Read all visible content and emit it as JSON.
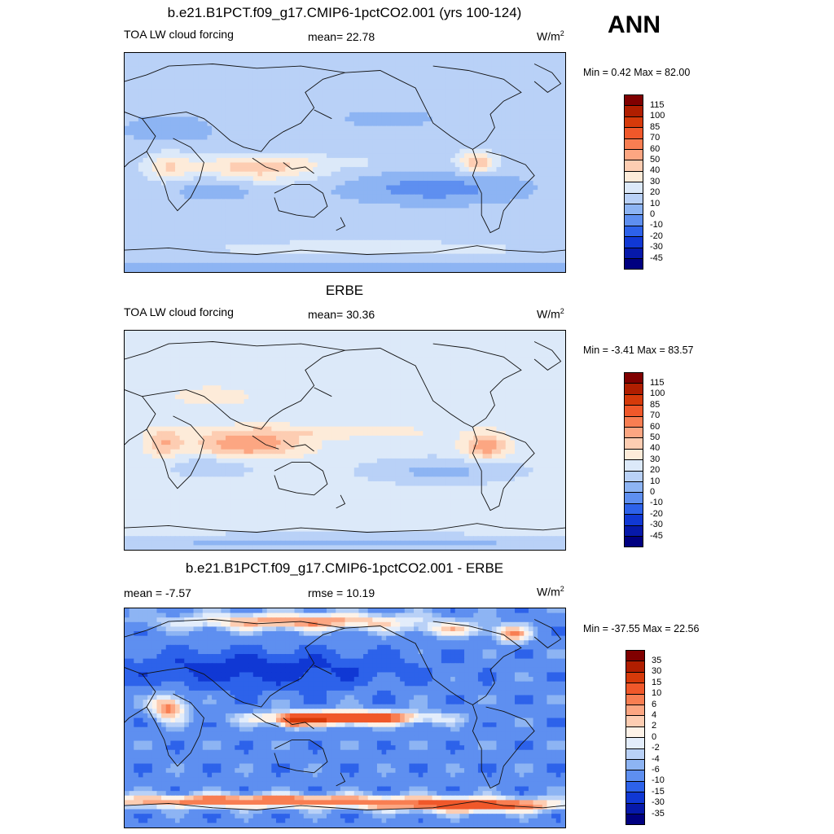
{
  "header": {
    "season": "ANN"
  },
  "panels": [
    {
      "title": "b.e21.B1PCT.f09_g17.CMIP6-1pctCO2.001 (yrs 100-124)",
      "left_label": "TOA LW cloud forcing",
      "center_label": "mean=  22.78",
      "units": "W/m",
      "units_sup": "2",
      "minmax": "Min =   0.42 Max =  82.00",
      "scale": "abs",
      "base_level": 15,
      "pattern": "model"
    },
    {
      "title": "ERBE",
      "left_label": "TOA LW cloud forcing",
      "center_label": "mean=  30.36",
      "units": "W/m",
      "units_sup": "2",
      "minmax": "Min =  -3.41 Max =  83.57",
      "scale": "abs",
      "base_level": 25,
      "pattern": "obs"
    },
    {
      "title": "b.e21.B1PCT.f09_g17.CMIP6-1pctCO2.001 - ERBE",
      "left_label": "mean =  -7.57",
      "center_label": "rmse =  10.19",
      "units": "W/m",
      "units_sup": "2",
      "minmax": "Min = -37.55 Max =  22.56",
      "scale": "diff",
      "base_level": -8,
      "pattern": "diff"
    }
  ],
  "colorbars": {
    "abs": {
      "labels": [
        "115",
        "100",
        "85",
        "70",
        "60",
        "50",
        "40",
        "30",
        "20",
        "10",
        "0",
        "-10",
        "-20",
        "-30",
        "-45"
      ],
      "colors": [
        "#800000",
        "#b01e00",
        "#d63a0a",
        "#f0582a",
        "#f87e52",
        "#fca682",
        "#fdcdb2",
        "#fdebd9",
        "#dce9f9",
        "#b9d1f7",
        "#8db4f3",
        "#5e8ff0",
        "#2d62ea",
        "#1038d4",
        "#0619aa",
        "#000080"
      ]
    },
    "diff": {
      "labels": [
        "35",
        "30",
        "15",
        "10",
        "6",
        "4",
        "2",
        "0",
        "-2",
        "-4",
        "-6",
        "-10",
        "-15",
        "-30",
        "-35"
      ],
      "colors": [
        "#800000",
        "#b01e00",
        "#d63a0a",
        "#f0582a",
        "#f87e52",
        "#fca682",
        "#fdcdb2",
        "#fdf2e8",
        "#e3edfb",
        "#b9d1f7",
        "#8db4f3",
        "#5e8ff0",
        "#2d62ea",
        "#1038d4",
        "#0619aa",
        "#000080"
      ]
    }
  }
}
